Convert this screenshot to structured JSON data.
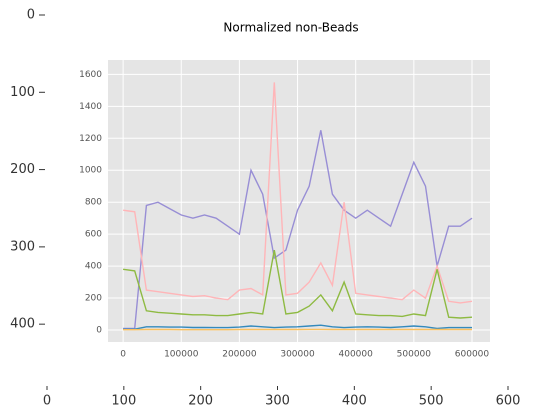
{
  "chart_data": [
    {
      "type": "image",
      "xlim": [
        0,
        600
      ],
      "ylim": [
        480,
        0
      ],
      "xticks": [
        0,
        100,
        200,
        300,
        400,
        500,
        600
      ],
      "yticks": [
        0,
        100,
        200,
        300,
        400
      ]
    },
    {
      "type": "line",
      "title": "Normalized non-Beads",
      "x": [
        0,
        20000,
        40000,
        60000,
        80000,
        100000,
        120000,
        140000,
        160000,
        180000,
        200000,
        220000,
        240000,
        260000,
        280000,
        300000,
        320000,
        340000,
        360000,
        380000,
        400000,
        420000,
        440000,
        460000,
        480000,
        500000,
        520000,
        540000,
        560000,
        580000,
        600000
      ],
      "series": [
        {
          "color": "#988ed5",
          "values": [
            10,
            10,
            780,
            800,
            760,
            720,
            700,
            720,
            700,
            650,
            600,
            1000,
            850,
            450,
            500,
            750,
            900,
            1250,
            850,
            750,
            700,
            750,
            700,
            650,
            850,
            1050,
            900,
            400,
            650,
            650,
            700
          ]
        },
        {
          "color": "#ffb5b8",
          "values": [
            750,
            740,
            250,
            240,
            230,
            220,
            210,
            215,
            200,
            190,
            250,
            260,
            220,
            1550,
            220,
            230,
            300,
            420,
            280,
            800,
            230,
            220,
            210,
            200,
            190,
            250,
            200,
            400,
            180,
            170,
            180
          ]
        },
        {
          "color": "#8eba42",
          "values": [
            380,
            370,
            120,
            110,
            105,
            100,
            95,
            95,
            90,
            90,
            100,
            110,
            100,
            500,
            100,
            110,
            150,
            220,
            120,
            300,
            100,
            95,
            90,
            90,
            85,
            100,
            90,
            380,
            80,
            75,
            80
          ]
        },
        {
          "color": "#348abd",
          "values": [
            5,
            5,
            20,
            20,
            18,
            18,
            16,
            16,
            15,
            15,
            18,
            25,
            20,
            15,
            18,
            20,
            25,
            30,
            20,
            15,
            18,
            20,
            18,
            16,
            20,
            25,
            20,
            10,
            15,
            15,
            15
          ]
        },
        {
          "color": "#fbc15e",
          "values": [
            2,
            2,
            3,
            3,
            3,
            2,
            2,
            2,
            2,
            2,
            3,
            3,
            3,
            3,
            3,
            3,
            4,
            4,
            3,
            3,
            3,
            3,
            3,
            3,
            3,
            3,
            3,
            3,
            3,
            3,
            3
          ]
        }
      ],
      "xlim": [
        -26000,
        631000
      ],
      "ylim": [
        -75,
        1690
      ],
      "xticks": [
        0,
        100000,
        200000,
        300000,
        400000,
        500000,
        600000
      ],
      "yticks": [
        0,
        200,
        400,
        600,
        800,
        1000,
        1200,
        1400,
        1600
      ],
      "grid": true
    }
  ]
}
